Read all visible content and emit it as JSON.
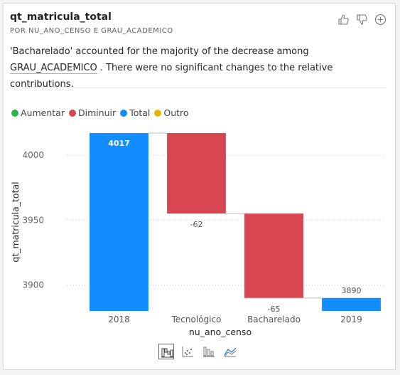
{
  "card": {
    "title": "qt_matricula_total",
    "subtitle": "POR NU_ANO_CENSO E GRAU_ACADEMICO",
    "summary_pre": "'Bacharelado' accounted for the majority of the decrease among ",
    "summary_field": "GRAU_ACADEMICO",
    "summary_post": " . There were no significant changes to the relative contributions."
  },
  "actions": [
    {
      "name": "thumbs-up-icon"
    },
    {
      "name": "thumbs-down-icon"
    },
    {
      "name": "add-icon"
    }
  ],
  "legend": [
    {
      "label": "Aumentar",
      "color": "#2bb44a"
    },
    {
      "label": "Diminuir",
      "color": "#d64550"
    },
    {
      "label": "Total",
      "color": "#118dff"
    },
    {
      "label": "Outro",
      "color": "#e5b40b"
    }
  ],
  "chart_data": {
    "type": "waterfall",
    "xlabel": "nu_ano_censo",
    "ylabel": "qt_matricula_total",
    "ylim": [
      3880,
      4017
    ],
    "yticks": [
      3900,
      3950,
      4000
    ],
    "grid": true,
    "legend_position": "top-left",
    "bars": [
      {
        "category": "2018",
        "kind": "total",
        "start": 3880,
        "end": 4017,
        "label": "4017",
        "color": "#118dff"
      },
      {
        "category": "Tecnológico",
        "kind": "decrease",
        "start": 4017,
        "end": 3955,
        "label": "-62",
        "color": "#d64550"
      },
      {
        "category": "Bacharelado",
        "kind": "decrease",
        "start": 3955,
        "end": 3890,
        "label": "-65",
        "color": "#d64550"
      },
      {
        "category": "2019",
        "kind": "total",
        "start": 3880,
        "end": 3890,
        "label": "3890",
        "color": "#118dff"
      }
    ]
  },
  "vis_types": [
    {
      "name": "waterfall-chart-icon",
      "active": true
    },
    {
      "name": "scatter-chart-icon",
      "active": false
    },
    {
      "name": "ranked-bar-icon",
      "active": false
    },
    {
      "name": "ribbon-chart-icon",
      "active": false
    }
  ]
}
